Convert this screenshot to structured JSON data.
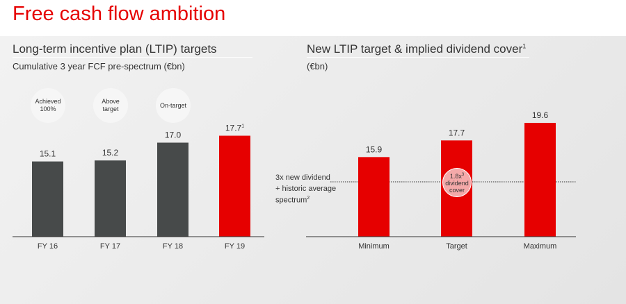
{
  "title": "Free cash flow ambition",
  "chart_data": [
    {
      "type": "bar",
      "title": "Long-term incentive plan (LTIP) targets",
      "subtitle": "Cumulative 3 year FCF pre-spectrum (€bn)",
      "categories": [
        "FY 16",
        "FY 17",
        "FY 18",
        "FY 19"
      ],
      "values": [
        15.1,
        15.2,
        17.0,
        17.7
      ],
      "value_labels": [
        "15.1",
        "15.2",
        "17.0",
        "17.7"
      ],
      "value_label_sups": [
        "",
        "",
        "",
        "1"
      ],
      "colors": [
        "#474a4a",
        "#474a4a",
        "#474a4a",
        "#e60000"
      ],
      "status_labels": [
        "Achieved 100%",
        "Above target",
        "On-target"
      ],
      "ylim": [
        7.5,
        19
      ]
    },
    {
      "type": "bar",
      "title": "New  LTIP target & implied dividend cover",
      "title_sup": "1",
      "subtitle": "(€bn)",
      "categories": [
        "Minimum",
        "Target",
        "Maximum"
      ],
      "values": [
        15.9,
        17.7,
        19.6
      ],
      "value_labels": [
        "15.9",
        "17.7",
        "19.6"
      ],
      "colors": [
        "#e60000",
        "#e60000",
        "#e60000"
      ],
      "ylim": [
        7.3,
        19.6
      ],
      "reference_line": {
        "label_line1": "3x new dividend",
        "label_line2": "+ historic average spectrum",
        "label_sup": "2"
      },
      "annotation": {
        "value": "1.8x",
        "sup": "3",
        "line2": "dividend",
        "line3": "cover"
      }
    }
  ]
}
